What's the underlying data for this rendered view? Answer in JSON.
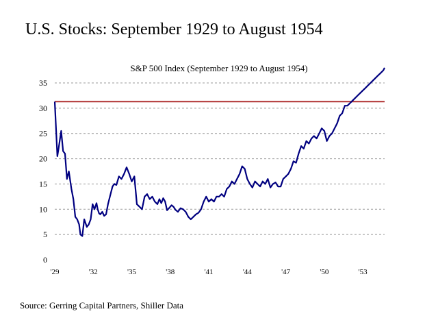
{
  "slide": {
    "title": "U.S. Stocks:  September 1929 to August 1954",
    "source": "Source: Gerring Capital Partners, Shiller Data"
  },
  "colors": {
    "series_line": "#000080",
    "reference_line": "#b03030",
    "gridline": "#999999"
  },
  "chart_data": {
    "type": "line",
    "title": "S&P 500 Index (September 1929 to August 1954)",
    "xlabel": "",
    "ylabel": "",
    "ylim": [
      0,
      35
    ],
    "xlim": [
      1929.0,
      1954.7
    ],
    "y_ticks": [
      0,
      5,
      10,
      15,
      20,
      25,
      30,
      35
    ],
    "y_tick_labels": [
      "0",
      "5",
      "10",
      "15",
      "20",
      "25",
      "30",
      "35"
    ],
    "x_ticks": [
      1929,
      1932,
      1935,
      1938,
      1941,
      1944,
      1947,
      1950,
      1953
    ],
    "x_tick_labels": [
      "'29",
      "'32",
      "'35",
      "'38",
      "'41",
      "'44",
      "'47",
      "'50",
      "'53"
    ],
    "grid": "horizontal dashed",
    "reference_lines": [
      {
        "y": 31.3
      }
    ],
    "series": [
      {
        "x": [
          1929.0,
          1929.2,
          1929.3,
          1929.5,
          1929.65,
          1929.8,
          1929.95,
          1930.1,
          1930.3,
          1930.45,
          1930.6,
          1930.75,
          1930.9,
          1931.0,
          1931.15,
          1931.3,
          1931.5,
          1931.65,
          1931.8,
          1931.95,
          1932.1,
          1932.25,
          1932.35,
          1932.45,
          1932.55,
          1932.7,
          1932.85,
          1933.0,
          1933.15,
          1933.3,
          1933.5,
          1933.65,
          1933.8,
          1934.0,
          1934.2,
          1934.4,
          1934.6,
          1934.8,
          1935.0,
          1935.2,
          1935.4,
          1935.6,
          1935.8,
          1936.0,
          1936.2,
          1936.4,
          1936.6,
          1936.8,
          1937.0,
          1937.15,
          1937.3,
          1937.45,
          1937.6,
          1937.75,
          1937.9,
          1938.1,
          1938.25,
          1938.4,
          1938.6,
          1938.8,
          1939.0,
          1939.2,
          1939.4,
          1939.6,
          1939.8,
          1940.0,
          1940.2,
          1940.4,
          1940.6,
          1940.8,
          1941.0,
          1941.2,
          1941.4,
          1941.6,
          1941.8,
          1942.0,
          1942.2,
          1942.4,
          1942.6,
          1942.8,
          1943.0,
          1943.2,
          1943.4,
          1943.6,
          1943.8,
          1944.0,
          1944.2,
          1944.4,
          1944.6,
          1944.8,
          1945.0,
          1945.2,
          1945.4,
          1945.6,
          1945.8,
          1946.0,
          1946.2,
          1946.4,
          1946.6,
          1946.8,
          1947.0,
          1947.2,
          1947.4,
          1947.6,
          1947.8,
          1948.0,
          1948.2,
          1948.4,
          1948.6,
          1948.8,
          1949.0,
          1949.2,
          1949.4,
          1949.6,
          1949.8,
          1950.0,
          1950.2,
          1950.4,
          1950.6,
          1950.8,
          1951.0,
          1951.2,
          1951.4,
          1951.6,
          1951.8,
          1952.0,
          1952.2,
          1952.4,
          1952.6,
          1952.8,
          1953.0,
          1953.2,
          1953.4,
          1953.6,
          1953.8,
          1954.0,
          1954.2,
          1954.4,
          1954.6,
          1954.7
        ],
        "values": [
          31.3,
          20.5,
          22.0,
          25.5,
          21.5,
          21.0,
          16.0,
          17.5,
          14.0,
          12.0,
          8.5,
          8.0,
          7.0,
          5.0,
          4.7,
          8.0,
          6.5,
          7.0,
          8.0,
          11.0,
          10.0,
          11.2,
          10.0,
          9.2,
          9.0,
          9.5,
          8.7,
          9.0,
          11.0,
          12.5,
          14.5,
          15.0,
          14.8,
          16.5,
          16.0,
          17.0,
          18.3,
          17.0,
          15.5,
          16.5,
          11.0,
          10.5,
          10.0,
          12.5,
          13.0,
          12.0,
          12.5,
          11.5,
          11.0,
          12.0,
          11.2,
          12.2,
          11.5,
          9.8,
          10.2,
          10.8,
          10.5,
          9.9,
          9.5,
          10.2,
          10.0,
          9.5,
          8.5,
          8.0,
          8.5,
          9.0,
          9.3,
          10.0,
          11.5,
          12.5,
          11.5,
          12.0,
          11.5,
          12.5,
          12.5,
          13.0,
          12.5,
          14.0,
          14.5,
          15.5,
          15.0,
          16.0,
          17.0,
          18.5,
          18.0,
          16.0,
          15.0,
          14.3,
          15.5,
          15.0,
          14.5,
          15.5,
          15.0,
          16.0,
          14.3,
          15.0,
          15.3,
          14.5,
          14.5,
          16.0,
          16.5,
          17.0,
          18.0,
          19.5,
          19.2,
          21.0,
          22.5,
          22.0,
          23.5,
          23.0,
          24.0,
          24.5,
          24.0,
          25.0,
          26.0,
          25.5,
          23.5,
          24.5,
          25.0,
          26.0,
          27.0,
          28.5,
          29.0,
          30.5,
          30.5,
          31.0,
          31.5,
          32.0,
          32.5,
          33.0,
          33.5,
          34.0,
          34.5,
          35.0,
          35.5,
          36.0,
          36.5,
          37.0,
          37.5,
          38.0
        ]
      }
    ]
  }
}
